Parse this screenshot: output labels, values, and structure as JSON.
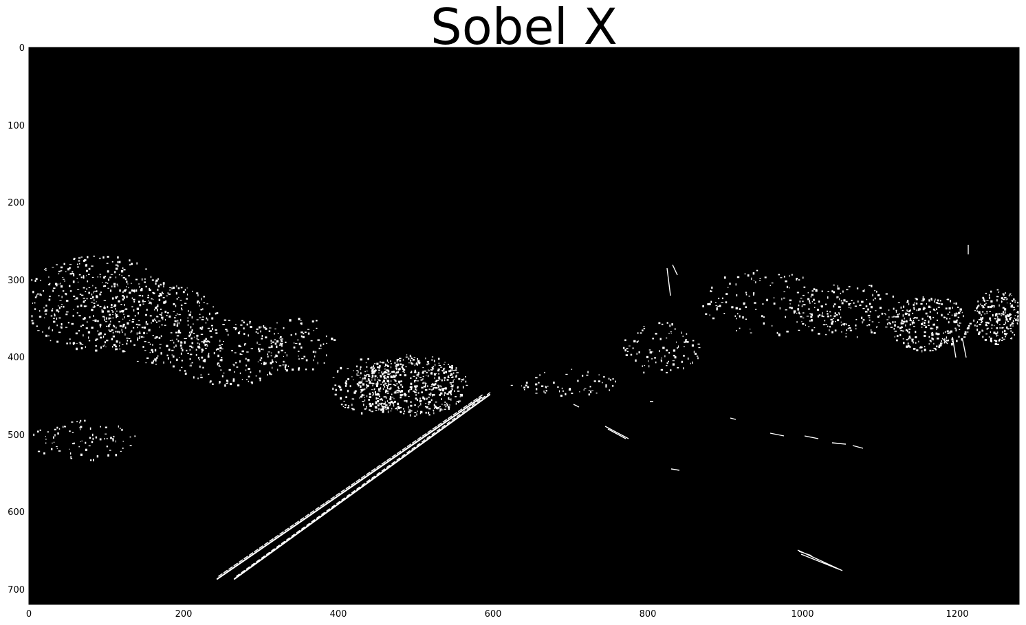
{
  "figure": {
    "title": "Sobel X",
    "background_color": "#000000",
    "edge_color": "#ffffff",
    "axes": {
      "x_ticks": [
        "0",
        "200",
        "400",
        "600",
        "800",
        "1000",
        "1200"
      ],
      "y_ticks": [
        "0",
        "100",
        "200",
        "300",
        "400",
        "500",
        "600",
        "700"
      ]
    }
  }
}
